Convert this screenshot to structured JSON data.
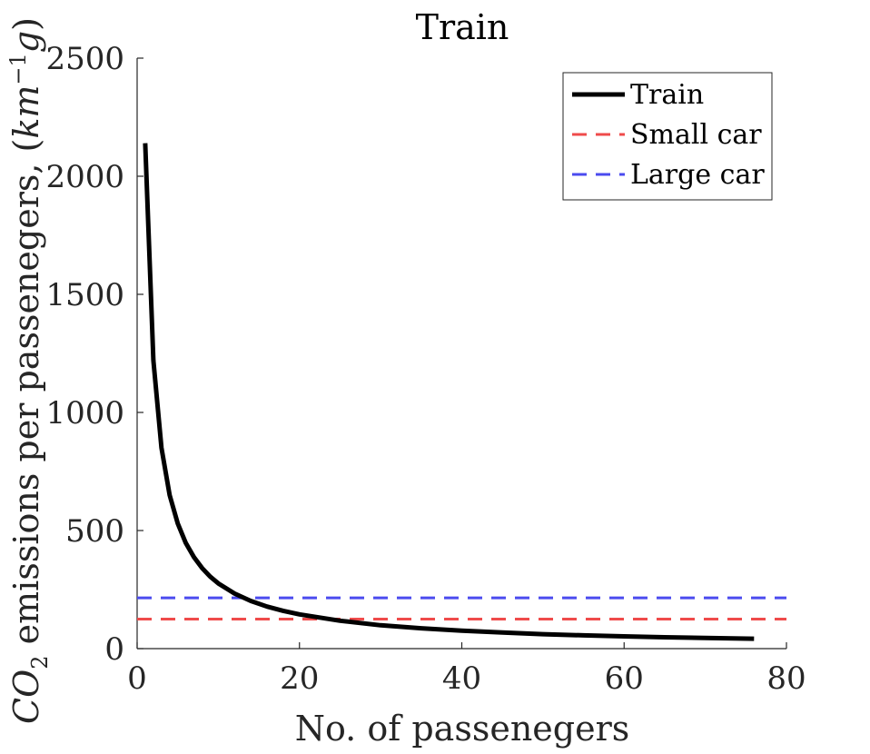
{
  "chart_data": {
    "type": "line",
    "title": "Train",
    "xlabel": "No. of passenegers",
    "ylabel_main": "CO",
    "ylabel_sub": "2",
    "ylabel_rest": " emissions per passenegers, (",
    "ylabel_km": "km",
    "ylabel_exp": "−1",
    "ylabel_g": "g",
    "ylabel_close": ")",
    "xlim": [
      0,
      80
    ],
    "ylim": [
      0,
      2500
    ],
    "xticks": [
      0,
      20,
      40,
      60,
      80
    ],
    "yticks": [
      0,
      500,
      1000,
      1500,
      2000,
      2500
    ],
    "legend_position": "top-right",
    "series": [
      {
        "name": "Train",
        "style": "solid",
        "color": "#000000",
        "x": [
          1,
          2,
          3,
          4,
          5,
          6,
          7,
          8,
          9,
          10,
          12,
          14,
          16,
          18,
          20,
          25,
          30,
          35,
          40,
          45,
          50,
          55,
          60,
          65,
          70,
          76
        ],
        "y": [
          2140,
          1220,
          850,
          650,
          530,
          447,
          387,
          341,
          305,
          276,
          233,
          202,
          178,
          160,
          145,
          118,
          99,
          86,
          76,
          68,
          61,
          56,
          52,
          48,
          45,
          42
        ]
      },
      {
        "name": "Small car",
        "style": "dashed",
        "color": "#ef4b4b",
        "x": [
          0,
          80
        ],
        "y": [
          125,
          125
        ]
      },
      {
        "name": "Large car",
        "style": "dashed",
        "color": "#4b4bef",
        "x": [
          0,
          80
        ],
        "y": [
          215,
          215
        ]
      }
    ]
  }
}
